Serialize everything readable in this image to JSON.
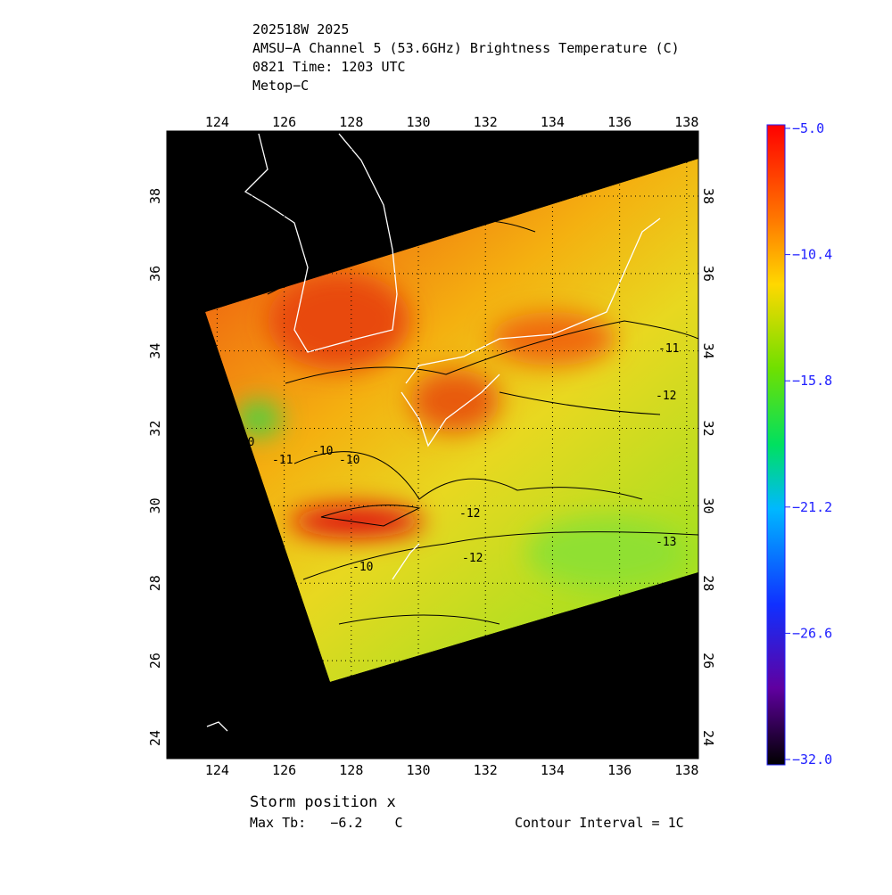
{
  "header": {
    "lines": [
      "202518W 2025",
      "AMSU−A Channel 5 (53.6GHz) Brightness Temperature (C)",
      "0821 Time: 1203 UTC",
      "Metop−C"
    ]
  },
  "map": {
    "xlim": [
      122.5,
      138.35
    ],
    "ylim": [
      23.47,
      39.68
    ],
    "lon_ticks": [
      124,
      126,
      128,
      130,
      132,
      134,
      136,
      138
    ],
    "lat_ticks": [
      24,
      26,
      28,
      30,
      32,
      34,
      36,
      38
    ],
    "contour_labels": [
      -10,
      -10,
      -11,
      -10,
      -12,
      -12,
      -10,
      -11,
      -12,
      -13
    ]
  },
  "colorbar": {
    "lim": [
      -32,
      -5
    ],
    "ticks": [
      {
        "value": -5,
        "label": "−5.0"
      },
      {
        "value": -10.4,
        "label": "−10.4"
      },
      {
        "value": -15.8,
        "label": "−15.8"
      },
      {
        "value": -21.2,
        "label": "−21.2"
      },
      {
        "value": -26.6,
        "label": "−26.6"
      },
      {
        "value": -32,
        "label": "−32.0"
      }
    ]
  },
  "footer": {
    "storm": "Storm position x",
    "max_tb": "Max Tb:   −6.2    C",
    "contour": "Contour Interval = 1C"
  }
}
